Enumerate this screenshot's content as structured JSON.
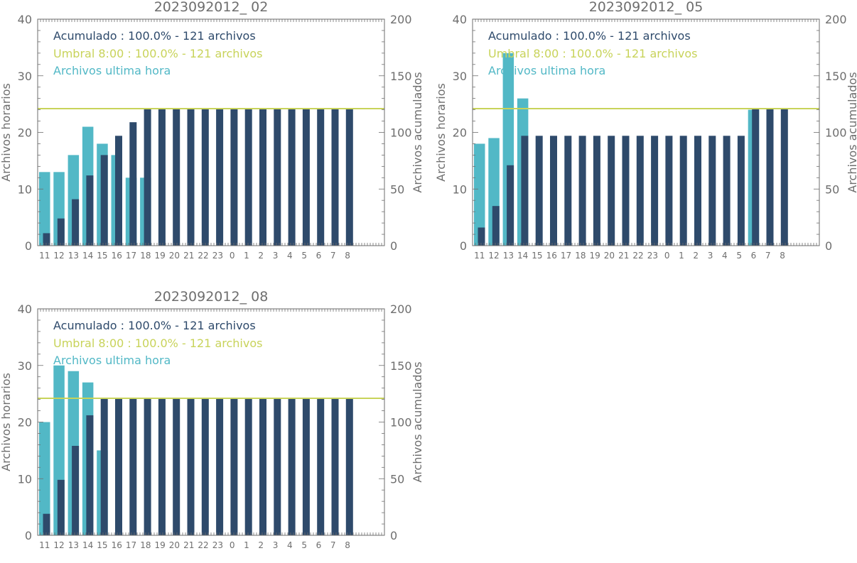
{
  "colors": {
    "acumulado": "#2e4a6b",
    "umbral": "#c8d35a",
    "ultima_hora": "#52b8c6",
    "axis": "#6e6e6e",
    "title": "#6e6e6e"
  },
  "legend": {
    "acumulado": "Acumulado : 100.0% - 121 archivos",
    "umbral": "Umbral 8:00 : 100.0% - 121 archivos",
    "ultima_hora": "Archivos ultima hora"
  },
  "chart_data": [
    {
      "type": "bar",
      "title": "2023092012_ 02",
      "ylabel": "Archivos horarios",
      "y2label": "Archivos acumulados",
      "ylim": [
        0,
        40
      ],
      "y2lim": [
        0,
        200
      ],
      "yticks": [
        0,
        10,
        20,
        30,
        40
      ],
      "y2ticks": [
        0,
        50,
        100,
        150,
        200
      ],
      "categories": [
        "11",
        "12",
        "13",
        "14",
        "15",
        "16",
        "17",
        "18",
        "19",
        "20",
        "21",
        "22",
        "23",
        "0",
        "1",
        "2",
        "3",
        "4",
        "5",
        "6",
        "7",
        "8"
      ],
      "threshold": 121,
      "series": [
        {
          "name": "Archivos ultima hora",
          "axis": "left",
          "values": [
            13,
            13,
            16,
            21,
            18,
            16,
            12,
            12,
            null,
            null,
            null,
            null,
            null,
            null,
            null,
            null,
            null,
            null,
            null,
            null,
            null,
            null
          ]
        },
        {
          "name": "Acumulado",
          "axis": "right",
          "values": [
            11,
            24,
            41,
            62,
            80,
            97,
            109,
            121,
            121,
            121,
            121,
            121,
            121,
            121,
            121,
            121,
            121,
            121,
            121,
            121,
            121,
            121
          ]
        }
      ]
    },
    {
      "type": "bar",
      "title": "2023092012_ 05",
      "ylabel": "Archivos horarios",
      "y2label": "Archivos acumulados",
      "ylim": [
        0,
        40
      ],
      "y2lim": [
        0,
        200
      ],
      "yticks": [
        0,
        10,
        20,
        30,
        40
      ],
      "y2ticks": [
        0,
        50,
        100,
        150,
        200
      ],
      "categories": [
        "11",
        "12",
        "13",
        "14",
        "15",
        "16",
        "17",
        "18",
        "19",
        "20",
        "21",
        "22",
        "23",
        "0",
        "1",
        "2",
        "3",
        "4",
        "5",
        "6",
        "7",
        "8"
      ],
      "threshold": 121,
      "series": [
        {
          "name": "Archivos ultima hora",
          "axis": "left",
          "values": [
            18,
            19,
            34,
            26,
            null,
            null,
            null,
            null,
            null,
            null,
            null,
            null,
            null,
            null,
            null,
            null,
            null,
            null,
            null,
            24,
            null,
            null
          ]
        },
        {
          "name": "Acumulado",
          "axis": "right",
          "values": [
            16,
            35,
            71,
            97,
            97,
            97,
            97,
            97,
            97,
            97,
            97,
            97,
            97,
            97,
            97,
            97,
            97,
            97,
            97,
            121,
            121,
            121
          ]
        }
      ]
    },
    {
      "type": "bar",
      "title": "2023092012_ 08",
      "ylabel": "Archivos horarios",
      "y2label": "Archivos acumulados",
      "ylim": [
        0,
        40
      ],
      "y2lim": [
        0,
        200
      ],
      "yticks": [
        0,
        10,
        20,
        30,
        40
      ],
      "y2ticks": [
        0,
        50,
        100,
        150,
        200
      ],
      "categories": [
        "11",
        "12",
        "13",
        "14",
        "15",
        "16",
        "17",
        "18",
        "19",
        "20",
        "21",
        "22",
        "23",
        "0",
        "1",
        "2",
        "3",
        "4",
        "5",
        "6",
        "7",
        "8"
      ],
      "threshold": 121,
      "series": [
        {
          "name": "Archivos ultima hora",
          "axis": "left",
          "values": [
            20,
            30,
            29,
            27,
            15,
            null,
            null,
            null,
            null,
            null,
            null,
            null,
            null,
            null,
            null,
            null,
            null,
            null,
            null,
            null,
            null,
            null
          ]
        },
        {
          "name": "Acumulado",
          "axis": "right",
          "values": [
            19,
            49,
            79,
            106,
            121,
            121,
            121,
            121,
            121,
            121,
            121,
            121,
            121,
            121,
            121,
            121,
            121,
            121,
            121,
            121,
            121,
            121
          ]
        }
      ]
    }
  ]
}
